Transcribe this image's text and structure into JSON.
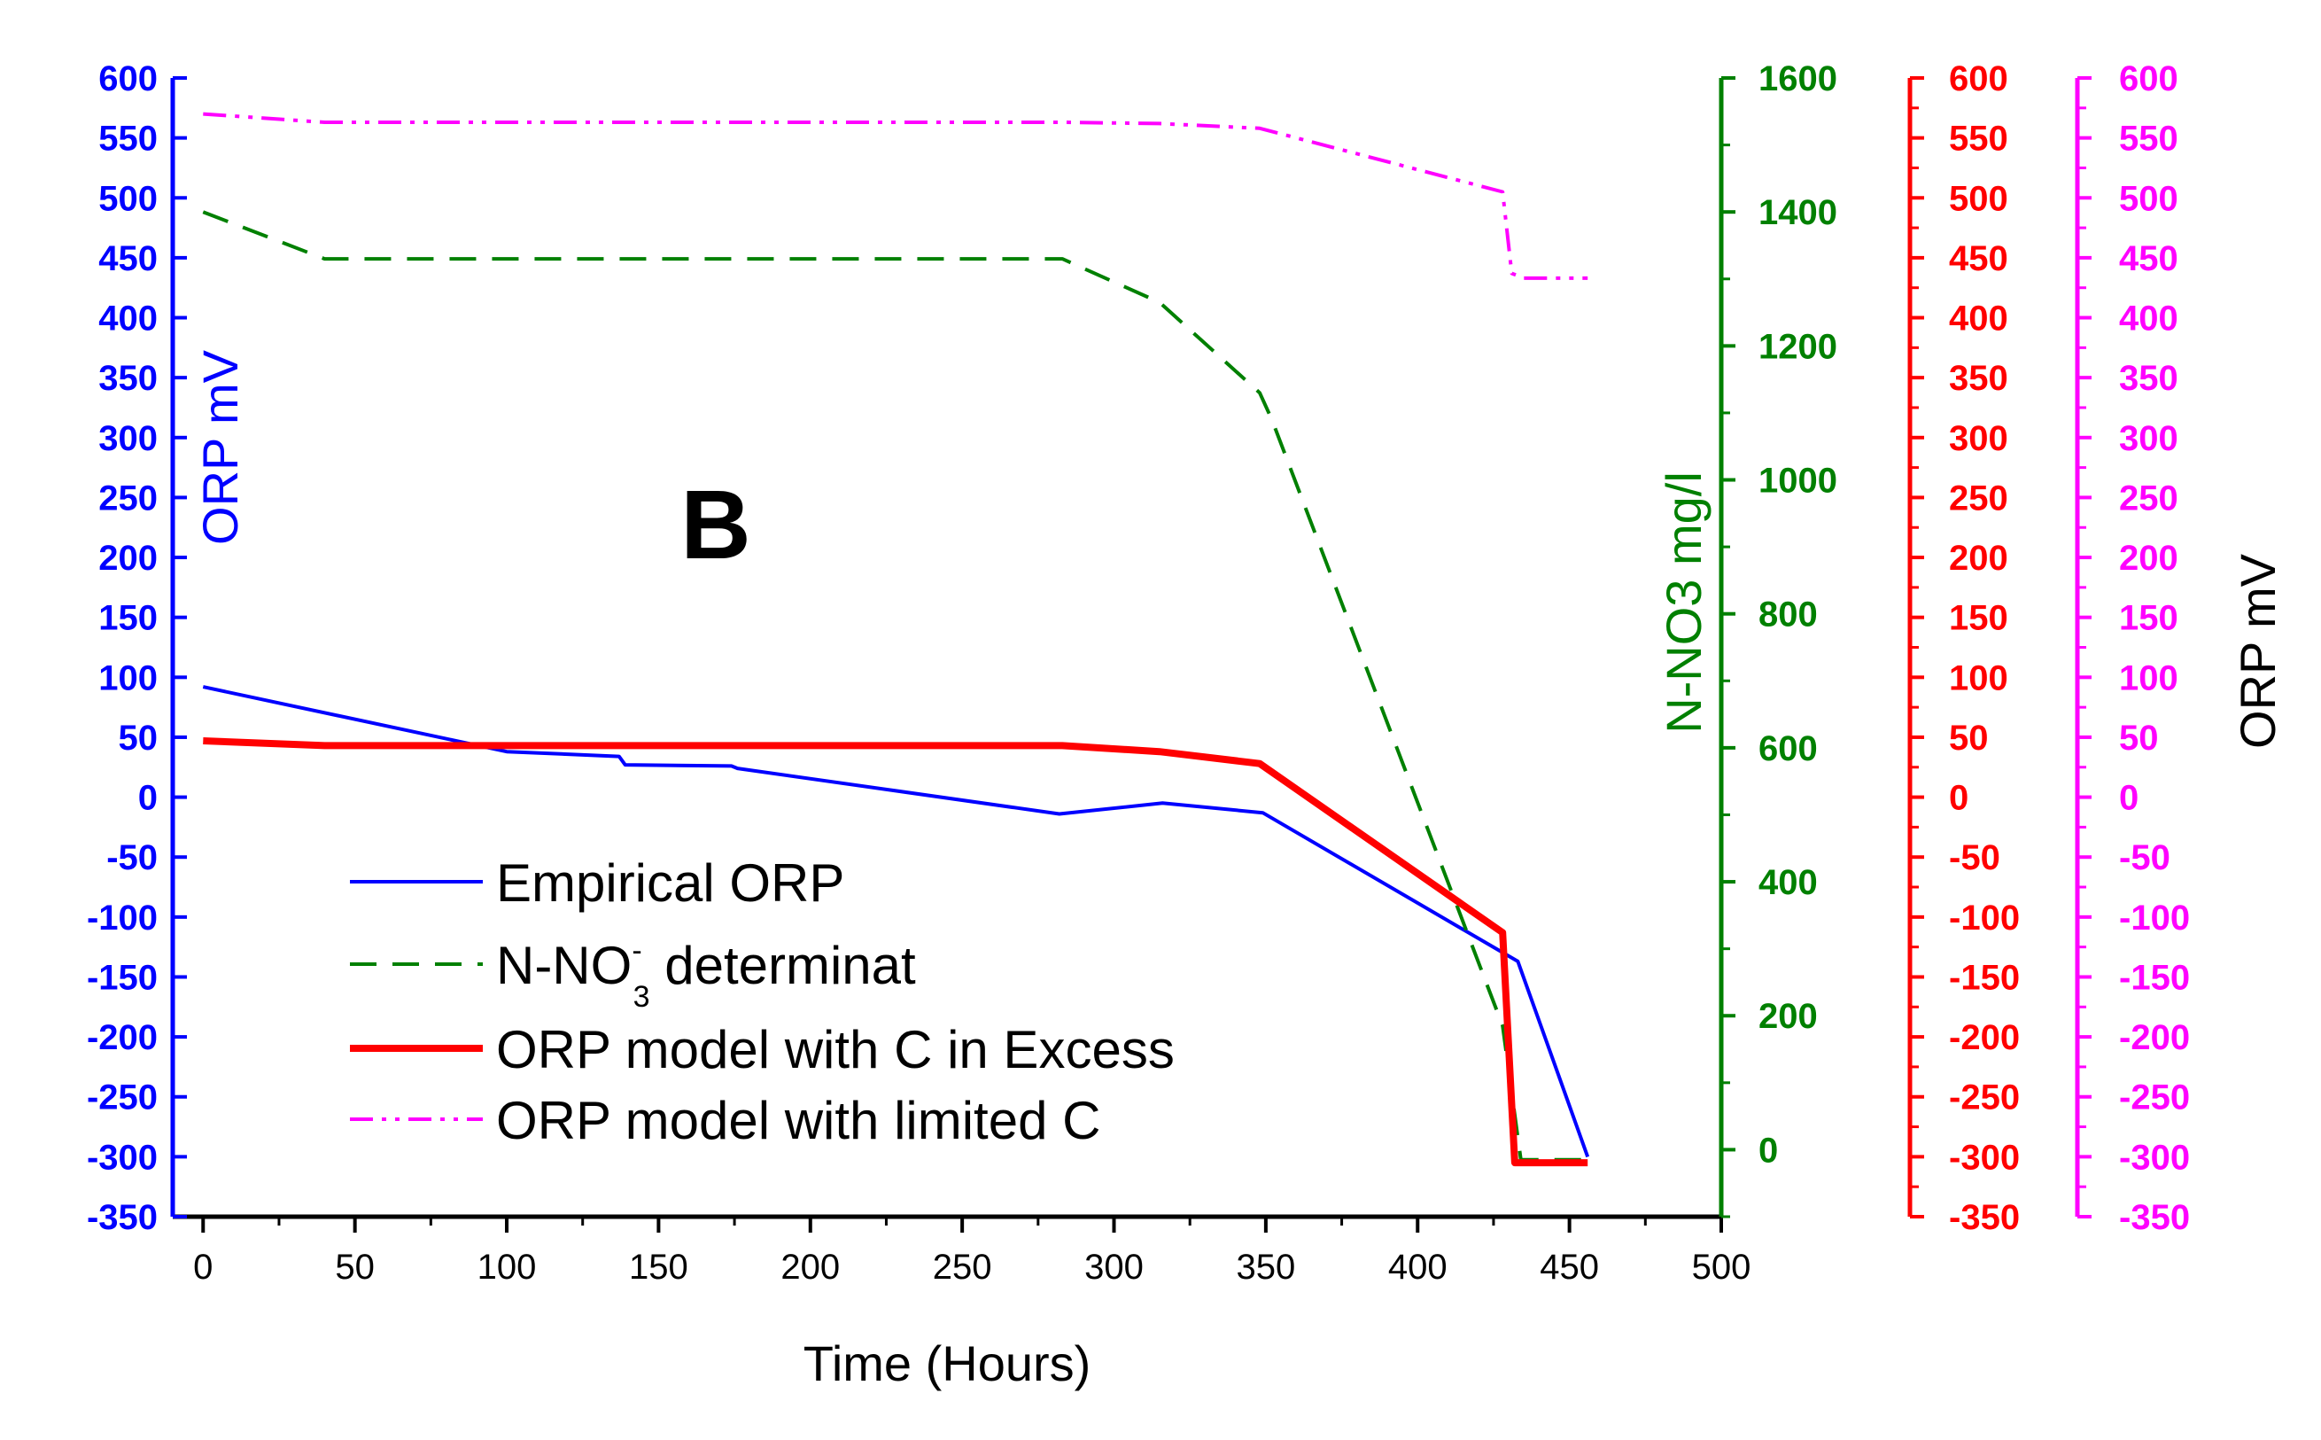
{
  "chart_data": {
    "type": "line",
    "panel_label": "B",
    "xlabel": "Time (Hours)",
    "xlim": [
      -10,
      500
    ],
    "x_ticks": [
      "0",
      "50",
      "100",
      "150",
      "200",
      "250",
      "300",
      "350",
      "400",
      "450",
      "500"
    ],
    "axes": {
      "left_blue": {
        "title": "ORP mV",
        "color": "#0000ff",
        "ylim": [
          -350,
          600
        ],
        "ticks": [
          "600",
          "550",
          "500",
          "450",
          "400",
          "350",
          "300",
          "250",
          "200",
          "150",
          "100",
          "50",
          "0",
          "-50",
          "-100",
          "-150",
          "-200",
          "-250",
          "-300",
          "-350"
        ]
      },
      "green": {
        "title": "N-NO3 mg/l",
        "color": "#008000",
        "ylim": [
          -100,
          1600
        ],
        "ticks": [
          "1600",
          "1400",
          "1200",
          "1000",
          "800",
          "600",
          "400",
          "200",
          "0"
        ]
      },
      "red": {
        "title": "",
        "color": "#ff0000",
        "ylim": [
          -350,
          600
        ],
        "ticks": [
          "600",
          "550",
          "500",
          "450",
          "400",
          "350",
          "300",
          "250",
          "200",
          "150",
          "100",
          "50",
          "0",
          "-50",
          "-100",
          "-150",
          "-200",
          "-250",
          "-300",
          "-350"
        ]
      },
      "magenta": {
        "title": "ORP mV",
        "title_color": "#000000",
        "color": "#ff00ff",
        "ylim": [
          -350,
          600
        ],
        "ticks": [
          "600",
          "550",
          "500",
          "450",
          "400",
          "350",
          "300",
          "250",
          "200",
          "150",
          "100",
          "50",
          "0",
          "-50",
          "-100",
          "-150",
          "-200",
          "-250",
          "-300",
          "-350"
        ]
      }
    },
    "series": [
      {
        "name": "Empirical ORP",
        "color": "#0000ff",
        "style": "solid",
        "axis": "left_blue",
        "x": [
          0,
          100,
          137,
          139,
          174,
          176,
          282,
          316,
          349,
          433,
          456
        ],
        "y": [
          92,
          38,
          34,
          27,
          26,
          24,
          -14,
          -5,
          -13,
          -137,
          -300
        ]
      },
      {
        "name": "N-NO3- determinat",
        "legend_main": "N-NO",
        "legend_sup": "-",
        "legend_sub": "3",
        "legend_rest": " determinat",
        "color": "#008000",
        "style": "dashed",
        "axis": "green",
        "x": [
          0,
          40,
          283,
          315,
          348,
          352,
          428,
          434,
          456
        ],
        "y": [
          1400,
          1330,
          1330,
          1265,
          1130,
          1090,
          185,
          -15,
          -15
        ]
      },
      {
        "name": "ORP model with C in Excess",
        "color": "#ff0000",
        "style": "thick",
        "axis": "red",
        "x": [
          0,
          40,
          283,
          315,
          348,
          428,
          432,
          456
        ],
        "y": [
          47,
          43,
          43,
          38,
          28,
          -113,
          -305,
          -305
        ]
      },
      {
        "name": "ORP model with limited C",
        "color": "#ff00ff",
        "style": "dashdot",
        "axis": "magenta",
        "x": [
          0,
          40,
          283,
          315,
          348,
          428,
          431,
          435,
          456
        ],
        "y": [
          570,
          563,
          563,
          562,
          558,
          505,
          437,
          433,
          433
        ]
      }
    ],
    "legend_position": "lower-left"
  }
}
